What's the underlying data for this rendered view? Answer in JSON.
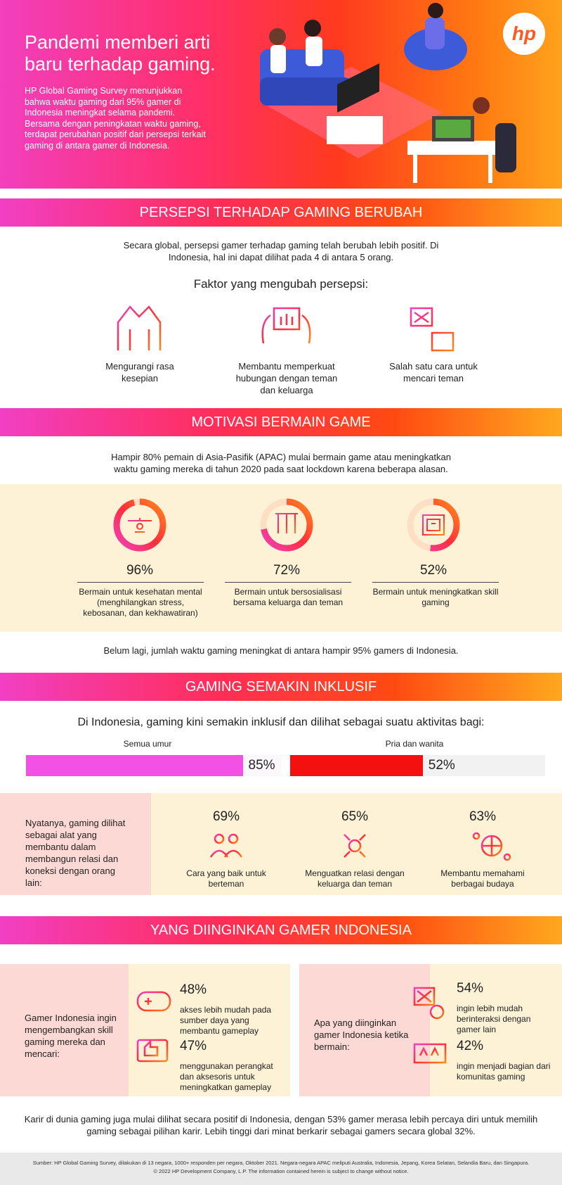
{
  "header": {
    "title": "Pandemi memberi arti baru terhadap gaming.",
    "intro": "HP Global Gaming Survey menunjukkan bahwa waktu gaming dari 95% gamer di Indonesia meningkat selama pandemi. Bersama dengan peningkatan waktu gaming, terdapat perubahan positif dari persepsi terkait gaming di antara gamer di Indonesia.",
    "logo": "hp"
  },
  "sections": [
    {
      "heading": "PERSEPSI TERHADAP GAMING BERUBAH",
      "text": "Secara global, persepsi gamer terhadap gaming telah berubah lebih positif. Di Indonesia, hal ini dapat dilihat pada 4 di antara 5 orang.",
      "subheading": "Faktor yang mengubah persepsi:",
      "factors": [
        "Mengurangi rasa kesepian",
        "Membantu memperkuat hubungan dengan teman dan keluarga",
        "Salah satu cara untuk mencari teman"
      ]
    },
    {
      "heading": "MOTIVASI BERMAIN GAME",
      "text": "Hampir 80% pemain di Asia-Pasifik (APAC) mulai bermain game atau meningkatkan waktu gaming mereka di tahun 2020 pada saat lockdown karena beberapa alasan.",
      "stats": [
        {
          "value": 96,
          "label": "96%",
          "text": "Bermain untuk kesehatan mental (menghilangkan stress, kebosanan, dan kekhawatiran)"
        },
        {
          "value": 72,
          "label": "72%",
          "text": "Bermain untuk bersosialisasi bersama keluarga dan teman"
        },
        {
          "value": 52,
          "label": "52%",
          "text": "Bermain untuk meningkatkan skill gaming"
        }
      ],
      "note": "Belum lagi, jumlah waktu gaming meningkat di antara hampir 95% gamers di Indonesia."
    },
    {
      "heading": "GAMING SEMAKIN INKLUSIF",
      "text": "Di Indonesia, gaming kini semakin inklusif dan dilihat sebagai suatu aktivitas bagi:",
      "bars": [
        {
          "name": "Semua umur",
          "value": 85,
          "label": "85%",
          "color": "#f350e6"
        },
        {
          "name": "Pria dan wanita",
          "value": 52,
          "label": "52%",
          "color": "#f3100e"
        }
      ],
      "side_text": "Nyatanya, gaming dilihat sebagai alat yang membantu dalam membangun relasi dan koneksi dengan orang lain:",
      "stats": [
        {
          "label": "69%",
          "text": "Cara yang baik untuk berteman"
        },
        {
          "label": "65%",
          "text": "Menguatkan relasi dengan keluarga dan teman"
        },
        {
          "label": "63%",
          "text": "Membantu memahami berbagai budaya"
        }
      ]
    },
    {
      "heading": "YANG DIINGINKAN GAMER INDONESIA",
      "groups": [
        {
          "text": "Gamer Indonesia ingin mengembangkan skill gaming mereka dan mencari:",
          "items": [
            {
              "label": "48%",
              "text": "akses lebih mudah pada sumber daya yang membantu gameplay"
            },
            {
              "label": "47%",
              "text": "menggunakan perangkat dan aksesoris untuk meningkatkan gameplay"
            }
          ]
        },
        {
          "text": "Apa yang diinginkan gamer Indonesia ketika bermain:",
          "items": [
            {
              "label": "54%",
              "text": "ingin lebih mudah berinteraksi dengan gamer lain"
            },
            {
              "label": "42%",
              "text": "ingin menjadi bagian dari komunitas gaming"
            }
          ]
        }
      ]
    }
  ],
  "closing": "Karir di dunia gaming juga mulai dilihat secara positif di Indonesia, dengan 53% gamer merasa lebih percaya diri untuk memilih gaming sebagai pilihan karir. Lebih tinggi dari minat berkarir sebagai gamers secara global 32%.",
  "footer": {
    "source": "Sumber: HP Global Gaming Survey, dilakukan di 13 negara, 1000+ responden per negara, Oktober 2021. Negara-negara APAC meliputi Australia, Indonesia, Jepang, Korea Selatan, Selandia Baru, dan Singapura.",
    "copyright": "© 2022 HP Development Company, L.P. The information contained herein is subject to change without notice."
  }
}
